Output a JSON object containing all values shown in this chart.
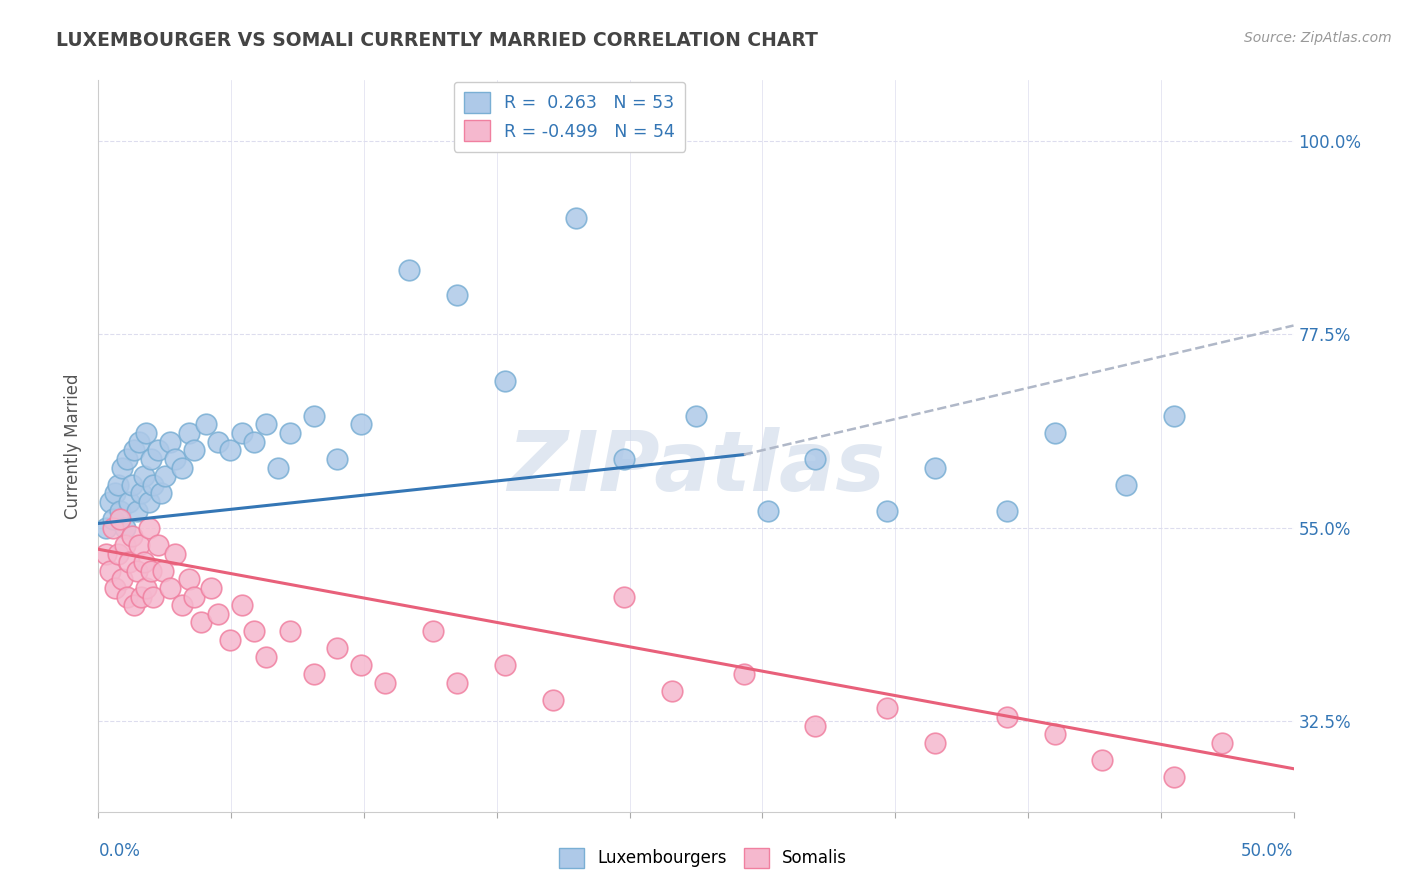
{
  "title": "LUXEMBOURGER VS SOMALI CURRENTLY MARRIED CORRELATION CHART",
  "source": "Source: ZipAtlas.com",
  "ylabel": "Currently Married",
  "xlim": [
    0.0,
    50.0
  ],
  "ylim": [
    22.0,
    107.0
  ],
  "yticks": [
    32.5,
    55.0,
    77.5,
    100.0
  ],
  "ytick_labels": [
    "32.5%",
    "55.0%",
    "77.5%",
    "100.0%"
  ],
  "legend_blue_r": "0.263",
  "legend_blue_n": "53",
  "legend_pink_r": "-0.499",
  "legend_pink_n": "54",
  "blue_dot_color": "#aec9e8",
  "blue_dot_edge": "#7aafd4",
  "pink_dot_color": "#f5b8ce",
  "pink_dot_edge": "#f080a0",
  "blue_line_color": "#3476b5",
  "pink_line_color": "#e8607a",
  "dashed_line_color": "#b0b8c8",
  "grid_color": "#ddddee",
  "watermark_color": "#ccd8e8",
  "right_tick_color": "#3476b5",
  "bottom_tick_color": "#3476b5",
  "title_color": "#444444",
  "source_color": "#999999",
  "ylabel_color": "#555555",
  "watermark": "ZIPatlas",
  "blue_x": [
    0.3,
    0.5,
    0.6,
    0.7,
    0.8,
    0.9,
    1.0,
    1.1,
    1.2,
    1.3,
    1.4,
    1.5,
    1.6,
    1.7,
    1.8,
    1.9,
    2.0,
    2.1,
    2.2,
    2.3,
    2.5,
    2.6,
    2.8,
    3.0,
    3.2,
    3.5,
    3.8,
    4.0,
    4.5,
    5.0,
    5.5,
    6.0,
    6.5,
    7.0,
    7.5,
    8.0,
    9.0,
    10.0,
    11.0,
    13.0,
    15.0,
    17.0,
    20.0,
    22.0,
    25.0,
    28.0,
    30.0,
    33.0,
    35.0,
    38.0,
    40.0,
    43.0,
    45.0
  ],
  "blue_y": [
    55,
    58,
    56,
    59,
    60,
    57,
    62,
    55,
    63,
    58,
    60,
    64,
    57,
    65,
    59,
    61,
    66,
    58,
    63,
    60,
    64,
    59,
    61,
    65,
    63,
    62,
    66,
    64,
    67,
    65,
    64,
    66,
    65,
    67,
    62,
    66,
    68,
    63,
    67,
    85,
    82,
    72,
    91,
    63,
    68,
    57,
    63,
    57,
    62,
    57,
    66,
    60,
    68
  ],
  "pink_x": [
    0.3,
    0.5,
    0.6,
    0.7,
    0.8,
    0.9,
    1.0,
    1.1,
    1.2,
    1.3,
    1.4,
    1.5,
    1.6,
    1.7,
    1.8,
    1.9,
    2.0,
    2.1,
    2.2,
    2.3,
    2.5,
    2.7,
    3.0,
    3.2,
    3.5,
    3.8,
    4.0,
    4.3,
    4.7,
    5.0,
    5.5,
    6.0,
    6.5,
    7.0,
    8.0,
    9.0,
    10.0,
    11.0,
    12.0,
    14.0,
    15.0,
    17.0,
    19.0,
    22.0,
    24.0,
    27.0,
    30.0,
    33.0,
    35.0,
    38.0,
    40.0,
    42.0,
    45.0,
    47.0
  ],
  "pink_y": [
    52,
    50,
    55,
    48,
    52,
    56,
    49,
    53,
    47,
    51,
    54,
    46,
    50,
    53,
    47,
    51,
    48,
    55,
    50,
    47,
    53,
    50,
    48,
    52,
    46,
    49,
    47,
    44,
    48,
    45,
    42,
    46,
    43,
    40,
    43,
    38,
    41,
    39,
    37,
    43,
    37,
    39,
    35,
    47,
    36,
    38,
    32,
    34,
    30,
    33,
    31,
    28,
    26,
    30
  ],
  "blue_trend_x0": 0.0,
  "blue_trend_y0": 55.5,
  "blue_trend_x1": 50.0,
  "blue_trend_y1": 69.5,
  "blue_dash_x0": 27.0,
  "blue_dash_y0": 63.5,
  "blue_dash_x1": 50.0,
  "blue_dash_y1": 78.5,
  "pink_trend_x0": 0.0,
  "pink_trend_y0": 52.5,
  "pink_trend_x1": 50.0,
  "pink_trend_y1": 27.0
}
